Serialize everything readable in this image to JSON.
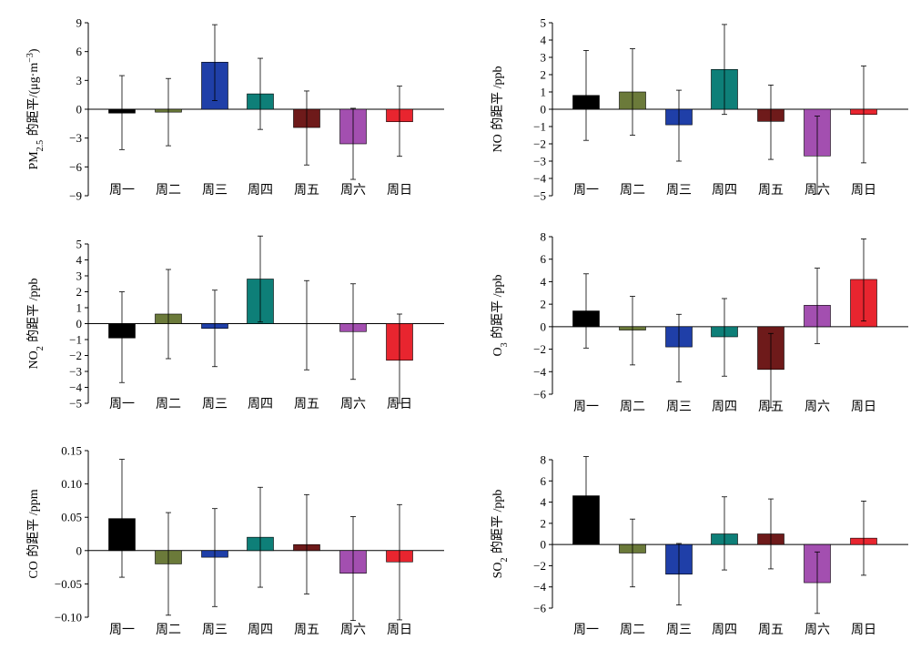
{
  "colors": [
    "#000000",
    "#6b7a3a",
    "#1f3fa8",
    "#0e7f78",
    "#6e1a1a",
    "#a34fb0",
    "#e8252f"
  ],
  "chart_data": [
    {
      "type": "bar",
      "ylabel": {
        "prefix": "PM",
        "sub": "2.5",
        "cjk": " 的距平",
        "unit": "/(μg·m",
        "sup": "−3",
        "tail": ")"
      },
      "categories": [
        "周一",
        "周二",
        "周三",
        "周四",
        "周五",
        "周六",
        "周日"
      ],
      "values": [
        -0.4,
        -0.3,
        4.9,
        1.6,
        -1.9,
        -3.6,
        -1.3
      ],
      "err_low": [
        -4.2,
        -3.8,
        0.9,
        -2.1,
        -5.8,
        -7.3,
        -4.9
      ],
      "err_high": [
        3.5,
        3.2,
        8.8,
        5.3,
        1.9,
        0.1,
        2.4
      ],
      "ylim": [
        -9,
        9
      ],
      "yticks": [
        -9,
        -6,
        -3,
        0,
        3,
        6,
        9
      ],
      "ytick_labels": [
        "−9",
        "−6",
        "−3",
        "0",
        "3",
        "6",
        "9"
      ]
    },
    {
      "type": "bar",
      "ylabel": {
        "prefix": "NO",
        "sub": "",
        "cjk": " 的距平",
        "unit": " /ppb",
        "sup": "",
        "tail": ""
      },
      "categories": [
        "周一",
        "周二",
        "周三",
        "周四",
        "周五",
        "周六",
        "周日"
      ],
      "values": [
        0.8,
        1.0,
        -0.9,
        2.3,
        -0.7,
        -2.7,
        -0.3
      ],
      "err_low": [
        -1.8,
        -1.5,
        -3.0,
        -0.3,
        -2.9,
        -4.9,
        -3.1
      ],
      "err_high": [
        3.4,
        3.5,
        1.1,
        4.9,
        1.4,
        -0.4,
        2.5
      ],
      "ylim": [
        -5,
        5
      ],
      "yticks": [
        -5,
        -4,
        -3,
        -2,
        -1,
        0,
        1,
        2,
        3,
        4,
        5
      ],
      "ytick_labels": [
        "−5",
        "−4",
        "−3",
        "−2",
        "−1",
        "0",
        "1",
        "2",
        "3",
        "4",
        "5"
      ]
    },
    {
      "type": "bar",
      "ylabel": {
        "prefix": "NO",
        "sub": "2",
        "cjk": " 的距平",
        "unit": " /ppb",
        "sup": "",
        "tail": ""
      },
      "categories": [
        "周一",
        "周二",
        "周三",
        "周四",
        "周五",
        "周六",
        "周日"
      ],
      "values": [
        -0.9,
        0.6,
        -0.3,
        2.8,
        0.0,
        -0.5,
        -2.3
      ],
      "err_low": [
        -3.7,
        -2.2,
        -2.7,
        0.1,
        -2.9,
        -3.5,
        -5.0
      ],
      "err_high": [
        2.0,
        3.4,
        2.1,
        5.5,
        2.7,
        2.5,
        0.6
      ],
      "ylim": [
        -5,
        5
      ],
      "yticks": [
        -5,
        -4,
        -3,
        -2,
        -1,
        0,
        1,
        2,
        3,
        4,
        5
      ],
      "ytick_labels": [
        "−5",
        "−4",
        "−3",
        "−2",
        "−1",
        "0",
        "1",
        "2",
        "3",
        "4",
        "5"
      ]
    },
    {
      "type": "bar",
      "ylabel": {
        "prefix": "O",
        "sub": "3",
        "cjk": " 的距平",
        "unit": " /ppb",
        "sup": "",
        "tail": ""
      },
      "categories": [
        "周一",
        "周二",
        "周三",
        "周四",
        "周五",
        "周六",
        "周日"
      ],
      "values": [
        1.4,
        -0.3,
        -1.8,
        -0.9,
        -3.8,
        1.9,
        4.2
      ],
      "err_low": [
        -1.9,
        -3.4,
        -4.9,
        -4.4,
        -7.2,
        -1.5,
        0.5
      ],
      "err_high": [
        4.7,
        2.7,
        1.1,
        2.5,
        -0.6,
        5.2,
        7.8
      ],
      "ylim": [
        -7,
        8
      ],
      "yticks": [
        -6,
        -4,
        -2,
        0,
        2,
        4,
        6,
        8
      ],
      "ytick_labels": [
        "−6",
        "−4",
        "−2",
        "0",
        "2",
        "4",
        "6",
        "8"
      ]
    },
    {
      "type": "bar",
      "ylabel": {
        "prefix": "CO",
        "sub": "",
        "cjk": " 的距平",
        "unit": " /ppm",
        "sup": "",
        "tail": ""
      },
      "categories": [
        "周一",
        "周二",
        "周三",
        "周四",
        "周五",
        "周六",
        "周日"
      ],
      "values": [
        0.048,
        -0.02,
        -0.01,
        0.02,
        0.009,
        -0.034,
        -0.017
      ],
      "err_low": [
        -0.04,
        -0.097,
        -0.084,
        -0.055,
        -0.065,
        -0.105,
        -0.104
      ],
      "err_high": [
        0.137,
        0.057,
        0.063,
        0.095,
        0.084,
        0.051,
        0.069
      ],
      "ylim": [
        -0.1,
        0.15
      ],
      "yticks": [
        -0.1,
        -0.05,
        0,
        0.05,
        0.1,
        0.15
      ],
      "ytick_labels": [
        "−0.10",
        "−0.05",
        "0",
        "0.05",
        "0.10",
        "0.15"
      ]
    },
    {
      "type": "bar",
      "ylabel": {
        "prefix": "SO",
        "sub": "2",
        "cjk": " 的距平",
        "unit": " /ppb",
        "sup": "",
        "tail": ""
      },
      "categories": [
        "周一",
        "周二",
        "周三",
        "周四",
        "周五",
        "周六",
        "周日"
      ],
      "values": [
        4.6,
        -0.8,
        -2.8,
        1.0,
        1.0,
        -3.6,
        0.6
      ],
      "err_low": [
        0.9,
        -4.0,
        -5.7,
        -2.4,
        -2.3,
        -6.5,
        -2.9
      ],
      "err_high": [
        8.3,
        2.4,
        0.1,
        4.5,
        4.3,
        -0.7,
        4.1
      ],
      "ylim": [
        -7,
        9
      ],
      "yticks": [
        -6,
        -4,
        -2,
        0,
        2,
        4,
        6,
        8
      ],
      "ytick_labels": [
        "−6",
        "−4",
        "−2",
        "0",
        "2",
        "4",
        "6",
        "8"
      ]
    }
  ]
}
